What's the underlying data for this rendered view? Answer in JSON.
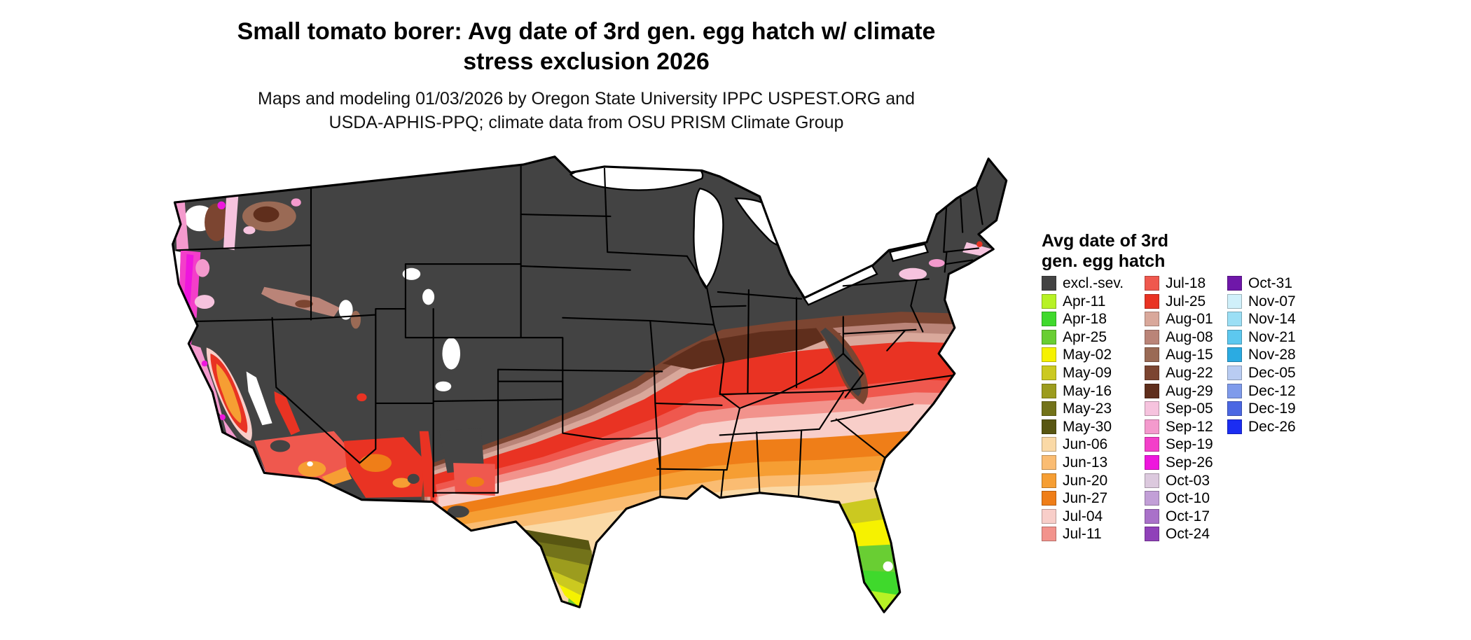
{
  "header": {
    "title_line1": "Small tomato borer: Avg date of 3rd gen. egg hatch w/ climate",
    "title_line2": "stress exclusion 2026",
    "subtitle_line1": "Maps and modeling 01/03/2026 by Oregon State University IPPC USPEST.ORG and",
    "subtitle_line2": "USDA-APHIS-PPQ; climate data from OSU PRISM Climate Group"
  },
  "legend": {
    "title_line1": "Avg date of 3rd",
    "title_line2": "gen. egg hatch",
    "columns": [
      [
        {
          "label": "excl.-sev.",
          "color": "#434343"
        },
        {
          "label": "Apr-11",
          "color": "#B7F225"
        },
        {
          "label": "Apr-18",
          "color": "#3FD92C"
        },
        {
          "label": "Apr-25",
          "color": "#69CE33"
        },
        {
          "label": "May-02",
          "color": "#F6F200"
        },
        {
          "label": "May-09",
          "color": "#CBC920"
        },
        {
          "label": "May-16",
          "color": "#9C9C1E"
        },
        {
          "label": "May-23",
          "color": "#73731A"
        },
        {
          "label": "May-30",
          "color": "#585612"
        },
        {
          "label": "Jun-06",
          "color": "#FAD9A6"
        },
        {
          "label": "Jun-13",
          "color": "#FABC72"
        },
        {
          "label": "Jun-20",
          "color": "#F69E33"
        },
        {
          "label": "Jun-27",
          "color": "#EF7E18"
        },
        {
          "label": "Jul-04",
          "color": "#F8CEC9"
        },
        {
          "label": "Jul-11",
          "color": "#F2938C"
        }
      ],
      [
        {
          "label": "Jul-18",
          "color": "#EF584E"
        },
        {
          "label": "Jul-25",
          "color": "#E93323"
        },
        {
          "label": "Aug-01",
          "color": "#D9A89B"
        },
        {
          "label": "Aug-08",
          "color": "#BA8478"
        },
        {
          "label": "Aug-15",
          "color": "#9A6A55"
        },
        {
          "label": "Aug-22",
          "color": "#7C4531"
        },
        {
          "label": "Aug-29",
          "color": "#5F2E1C"
        },
        {
          "label": "Sep-05",
          "color": "#F6C3DE"
        },
        {
          "label": "Sep-12",
          "color": "#F49ACD"
        },
        {
          "label": "Sep-19",
          "color": "#F33FC9"
        },
        {
          "label": "Sep-26",
          "color": "#EE16DD"
        },
        {
          "label": "Oct-03",
          "color": "#DCC9DE"
        },
        {
          "label": "Oct-10",
          "color": "#C29FD7"
        },
        {
          "label": "Oct-17",
          "color": "#A971C9"
        },
        {
          "label": "Oct-24",
          "color": "#9041B9"
        }
      ],
      [
        {
          "label": "Oct-31",
          "color": "#6F17A9"
        },
        {
          "label": "Nov-07",
          "color": "#D0F0FA"
        },
        {
          "label": "Nov-14",
          "color": "#9BDFF5"
        },
        {
          "label": "Nov-21",
          "color": "#5DC8EF"
        },
        {
          "label": "Nov-28",
          "color": "#2BABE2"
        },
        {
          "label": "Dec-05",
          "color": "#B9CCF2"
        },
        {
          "label": "Dec-12",
          "color": "#7F9BEB"
        },
        {
          "label": "Dec-19",
          "color": "#4B67E3"
        },
        {
          "label": "Dec-26",
          "color": "#1B2DF2"
        }
      ]
    ]
  },
  "map": {
    "excluded_color": "#434343",
    "border_color": "#000000",
    "water_color": "#ffffff"
  }
}
